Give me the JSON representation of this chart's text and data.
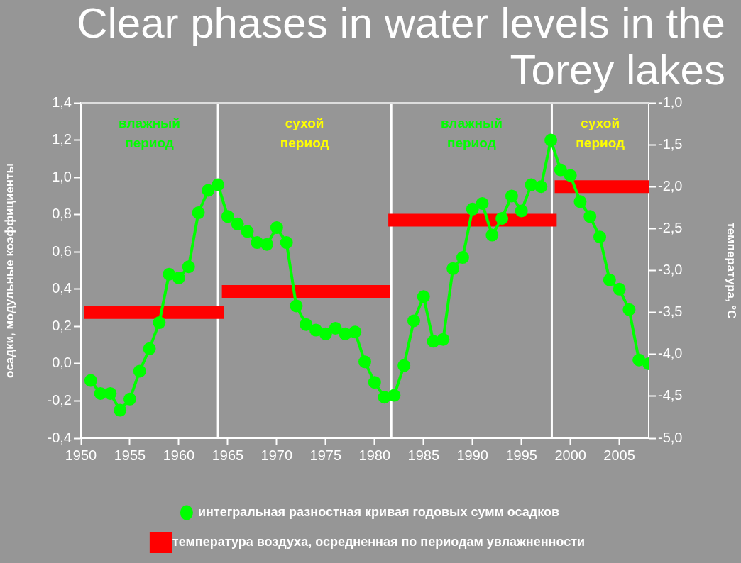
{
  "chart_data": {
    "type": "line",
    "title": "Clear phases in water levels in the Torey lakes",
    "ylabel": "осадки, модульные коэффициенты",
    "y2label": "температура, °C",
    "xlim": [
      1950,
      2008
    ],
    "xticks": [
      1950,
      1955,
      1960,
      1965,
      1970,
      1975,
      1980,
      1985,
      1990,
      1995,
      2000,
      2005
    ],
    "ylim": [
      -0.4,
      1.4
    ],
    "yticks": [
      {
        "value": -0.4,
        "label": "-0,4"
      },
      {
        "value": -0.2,
        "label": "-0,2"
      },
      {
        "value": 0,
        "label": "0,0"
      },
      {
        "value": 0.2,
        "label": "0,2"
      },
      {
        "value": 0.4,
        "label": "0,4"
      },
      {
        "value": 0.6,
        "label": "0,6"
      },
      {
        "value": 0.8,
        "label": "0,8"
      },
      {
        "value": 1,
        "label": "1,0"
      },
      {
        "value": 1.2,
        "label": "1,2"
      },
      {
        "value": 1.4,
        "label": "1,4"
      }
    ],
    "y2lim": [
      -5,
      -1
    ],
    "y2ticks": [
      {
        "value": -5,
        "label": "-5,0"
      },
      {
        "value": -4.5,
        "label": "-4,5"
      },
      {
        "value": -4,
        "label": "-4,0"
      },
      {
        "value": -3.5,
        "label": "-3,5"
      },
      {
        "value": -3,
        "label": "-3,0"
      },
      {
        "value": -2.5,
        "label": "-2,5"
      },
      {
        "value": -2,
        "label": "-2,0"
      },
      {
        "value": -1.5,
        "label": "-1,5"
      },
      {
        "value": -1,
        "label": "-1,0"
      }
    ],
    "legend": "bottom",
    "series": [
      {
        "name": "интегральная разностная кривая годовых сумм осадков",
        "color": "#00ff00",
        "marker": "circle",
        "x": [
          1951,
          1952,
          1953,
          1954,
          1955,
          1956,
          1957,
          1958,
          1959,
          1960,
          1961,
          1962,
          1963,
          1964,
          1965,
          1966,
          1967,
          1968,
          1969,
          1970,
          1971,
          1972,
          1973,
          1974,
          1975,
          1976,
          1977,
          1978,
          1979,
          1980,
          1981,
          1982,
          1983,
          1984,
          1985,
          1986,
          1987,
          1988,
          1989,
          1990,
          1991,
          1992,
          1993,
          1994,
          1995,
          1996,
          1997,
          1998,
          1999,
          2000,
          2001,
          2002,
          2003,
          2004,
          2005,
          2006,
          2007,
          2008
        ],
        "values": [
          -0.09,
          -0.16,
          -0.16,
          -0.25,
          -0.19,
          -0.04,
          0.08,
          0.22,
          0.48,
          0.46,
          0.52,
          0.81,
          0.93,
          0.96,
          0.79,
          0.75,
          0.71,
          0.65,
          0.64,
          0.73,
          0.65,
          0.31,
          0.21,
          0.18,
          0.16,
          0.19,
          0.16,
          0.17,
          0.01,
          -0.1,
          -0.18,
          -0.17,
          -0.01,
          0.23,
          0.36,
          0.12,
          0.13,
          0.51,
          0.57,
          0.83,
          0.86,
          0.69,
          0.78,
          0.9,
          0.82,
          0.96,
          0.95,
          1.2,
          1.04,
          1.01,
          0.87,
          0.79,
          0.68,
          0.45,
          0.4,
          0.29,
          0.02,
          0
        ]
      },
      {
        "name": "температура воздуха, осредненная по периодам увлажненности",
        "color": "#ff0000",
        "axis": "y2",
        "marker": "none",
        "x": [
          1950.3,
          1964.6,
          1964.4,
          1981.6,
          1981.4,
          1998.6,
          1998.4,
          2008
        ],
        "values": [
          -3.5,
          -3.5,
          -3.25,
          -3.25,
          -2.4,
          -2.4,
          -2,
          -2
        ]
      }
    ],
    "ref_lines": [
      {
        "axis": "x",
        "value": 1964,
        "color": "#ffffff"
      },
      {
        "axis": "x",
        "value": 1981.7,
        "color": "#ffffff"
      },
      {
        "axis": "x",
        "value": 1998.1,
        "color": "#ffffff"
      }
    ],
    "annotations": [
      "влажный период",
      "сухой период",
      "влажный период",
      "сухой период"
    ]
  }
}
